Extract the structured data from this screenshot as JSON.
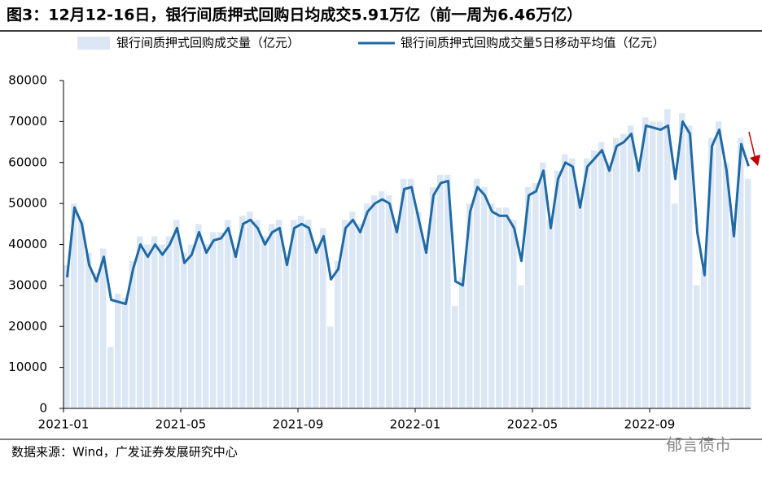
{
  "chart_data": {
    "type": "bar-line",
    "title": "图3：12月12-16日，银行间质押式回购日均成交5.91万亿（前一周为6.46万亿）",
    "source": "数据来源：Wind，广发证券发展研究中心",
    "watermark": "郁言债市",
    "categories": [
      "2021-01",
      null,
      null,
      null,
      null,
      null,
      null,
      null,
      null,
      null,
      null,
      null,
      null,
      null,
      null,
      null,
      "2021-05",
      null,
      null,
      null,
      null,
      null,
      null,
      null,
      null,
      null,
      null,
      null,
      null,
      null,
      null,
      null,
      "2021-09",
      null,
      null,
      null,
      null,
      null,
      null,
      null,
      null,
      null,
      null,
      null,
      null,
      null,
      null,
      null,
      "2022-01",
      null,
      null,
      null,
      null,
      null,
      null,
      null,
      null,
      null,
      null,
      null,
      null,
      null,
      null,
      null,
      "2022-05",
      null,
      null,
      null,
      null,
      null,
      null,
      null,
      null,
      null,
      null,
      null,
      null,
      null,
      null,
      null,
      "2022-09",
      null,
      null,
      null,
      null,
      null,
      null,
      null,
      null,
      null,
      null,
      null,
      null,
      null
    ],
    "series": [
      {
        "name": "银行间质押式回购成交量（亿元）",
        "type": "bar",
        "color": "#dce7f5",
        "values": [
          35000,
          50000,
          46000,
          38000,
          33000,
          39000,
          15000,
          28000,
          27000,
          36000,
          42000,
          40000,
          42000,
          40000,
          42000,
          46000,
          38000,
          40000,
          45000,
          40000,
          43000,
          43000,
          46000,
          39000,
          47000,
          48000,
          46000,
          42000,
          45000,
          46000,
          37000,
          46000,
          47000,
          46000,
          40000,
          44000,
          20000,
          36000,
          46000,
          48000,
          45000,
          50000,
          52000,
          53000,
          52000,
          45000,
          56000,
          56000,
          48000,
          40000,
          54000,
          57000,
          57000,
          25000,
          32000,
          50000,
          56000,
          54000,
          50000,
          49000,
          49000,
          46000,
          30000,
          54000,
          55000,
          60000,
          46000,
          58000,
          62000,
          61000,
          51000,
          61000,
          63000,
          65000,
          60000,
          66000,
          67000,
          69000,
          60000,
          71000,
          70000,
          70000,
          73000,
          50000,
          72000,
          69000,
          30000,
          34000,
          66000,
          70000,
          60000,
          44000,
          66000,
          56000
        ]
      },
      {
        "name": "银行间质押式回购成交量5日移动平均值（亿元）",
        "type": "line",
        "color": "#1f6aa5",
        "values": [
          32000,
          49000,
          45000,
          35000,
          31000,
          37000,
          26500,
          26000,
          25500,
          34000,
          40000,
          37000,
          40000,
          37500,
          40000,
          44000,
          35500,
          37500,
          43000,
          38000,
          41000,
          41500,
          44000,
          37000,
          45000,
          46000,
          44000,
          40000,
          43000,
          44000,
          35000,
          44000,
          45000,
          44000,
          38000,
          42000,
          31500,
          34000,
          44000,
          46000,
          43000,
          48000,
          50000,
          51000,
          50000,
          43000,
          53500,
          54000,
          46000,
          38000,
          52000,
          55000,
          55500,
          31000,
          30000,
          48000,
          54000,
          52000,
          48000,
          47000,
          47000,
          44000,
          36000,
          52000,
          53000,
          58000,
          44000,
          56000,
          60000,
          59000,
          49000,
          59000,
          61000,
          63000,
          58000,
          64000,
          65000,
          67000,
          58000,
          69000,
          68500,
          68000,
          69000,
          56000,
          70000,
          67000,
          43000,
          32500,
          64000,
          68000,
          58000,
          42000,
          64500,
          59100
        ]
      }
    ],
    "ylim": [
      0,
      80000
    ],
    "yticks": [
      0,
      10000,
      20000,
      30000,
      40000,
      50000,
      60000,
      70000,
      80000
    ],
    "grid": false
  }
}
